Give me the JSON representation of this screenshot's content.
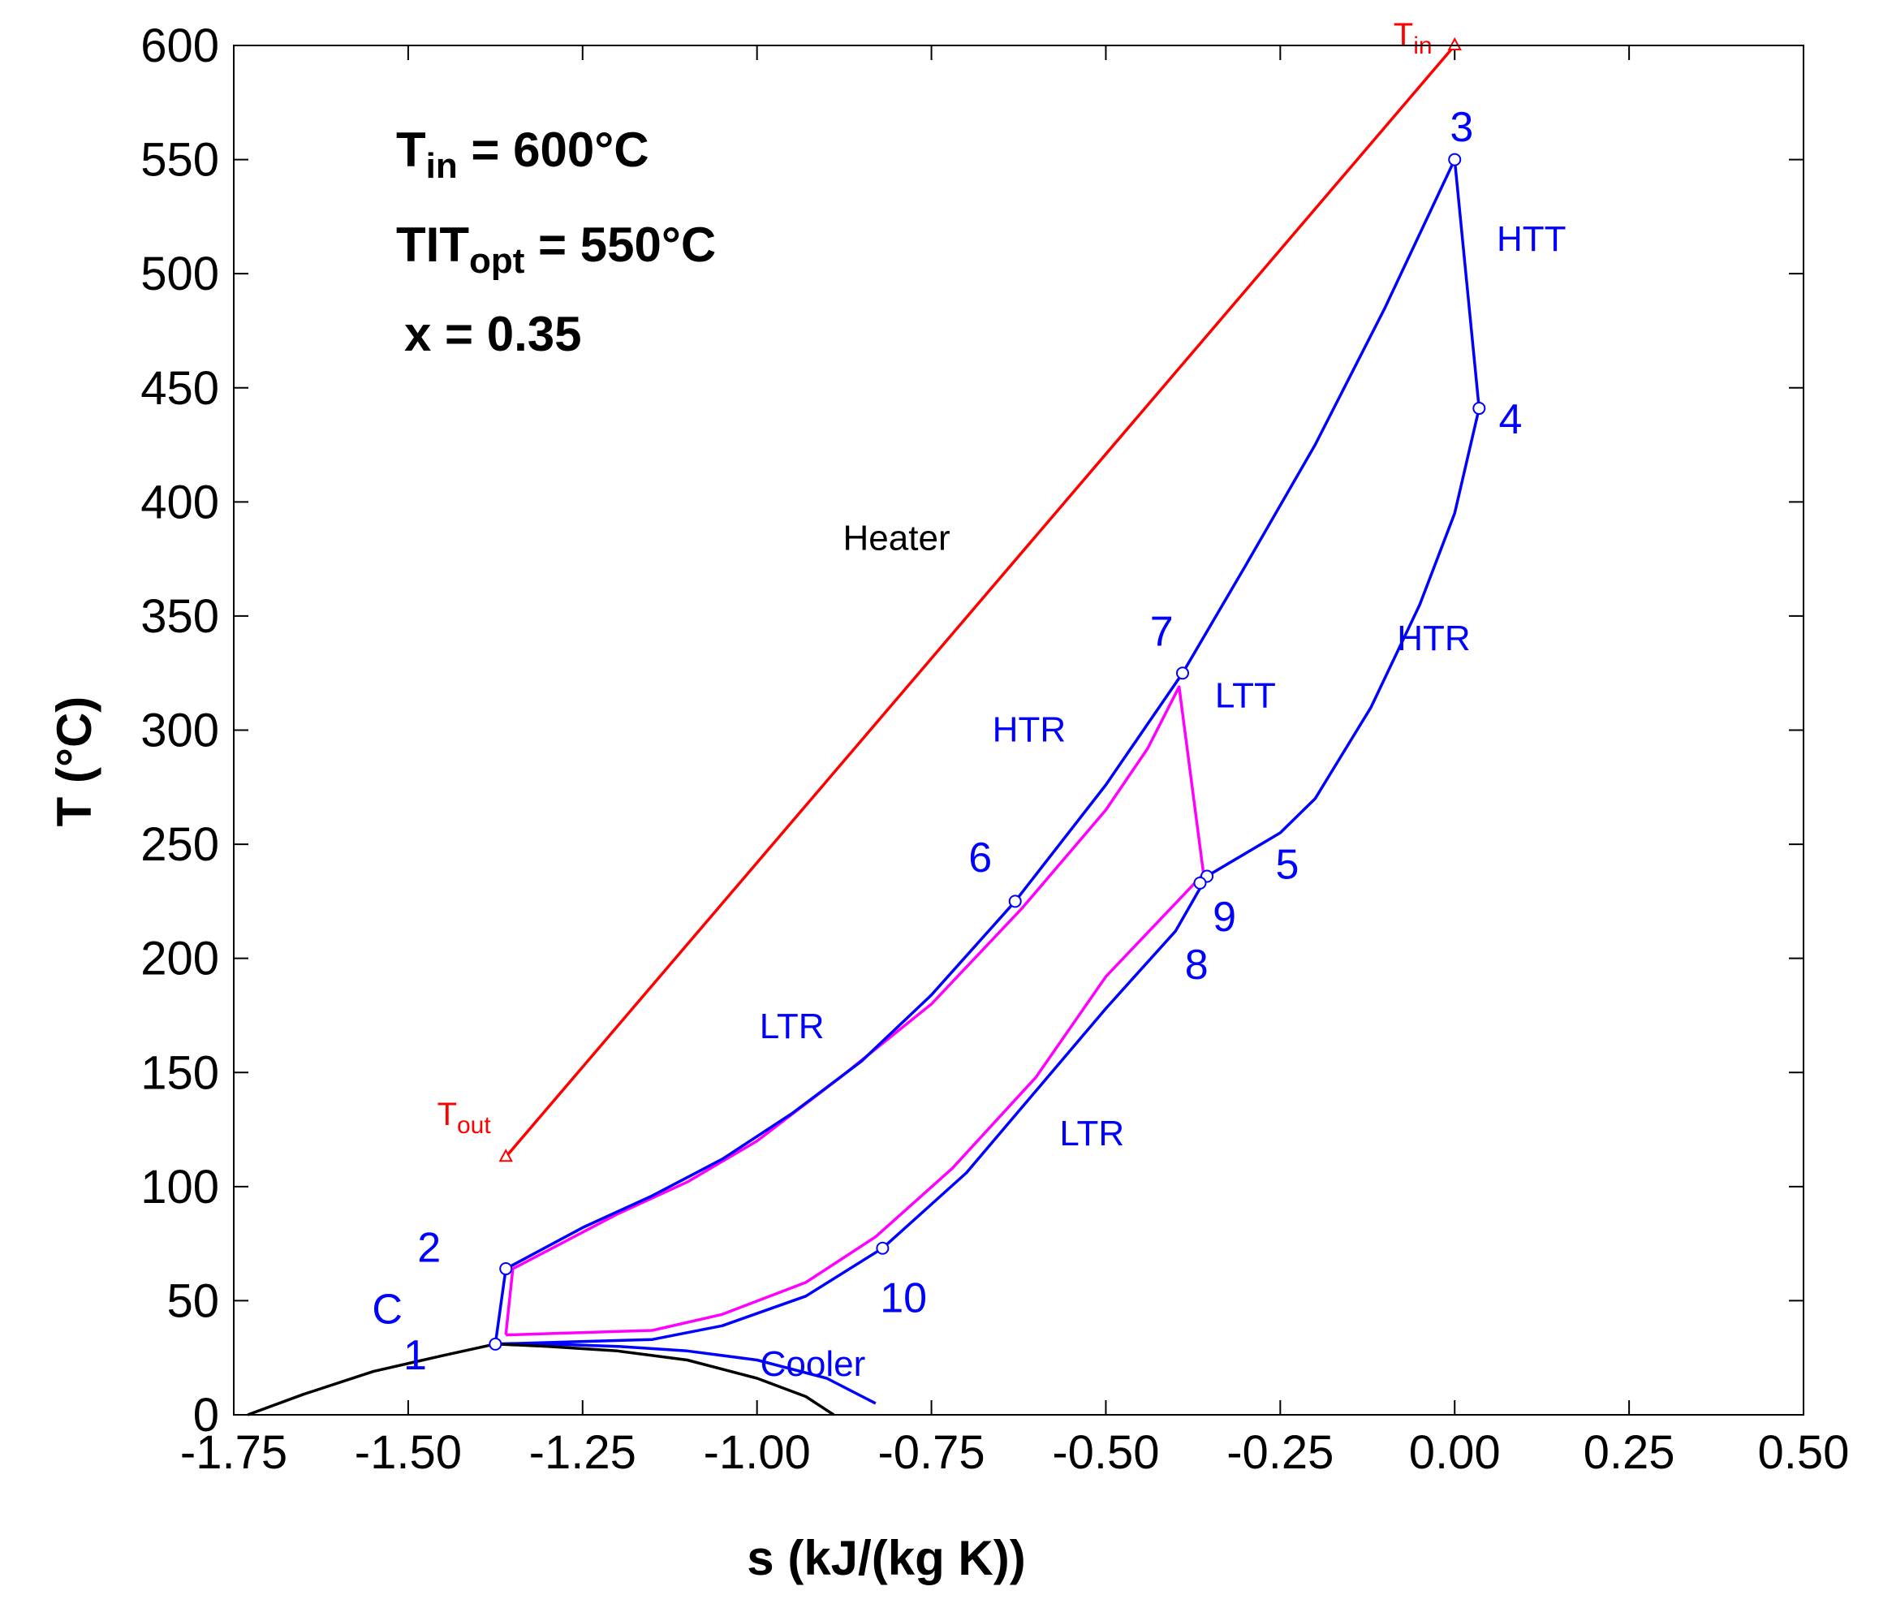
{
  "chart_data": {
    "type": "line",
    "xlabel": "s (kJ/(kg K))",
    "ylabel": "T (°C)",
    "xlim": [
      -1.75,
      0.5
    ],
    "ylim": [
      0,
      600
    ],
    "x_ticks": [
      "-1.75",
      "-1.50",
      "-1.25",
      "-1.00",
      "-0.75",
      "-0.50",
      "-0.25",
      "0.00",
      "0.25",
      "0.50"
    ],
    "y_ticks": [
      "0",
      "50",
      "100",
      "150",
      "200",
      "250",
      "300",
      "350",
      "400",
      "450",
      "500",
      "550",
      "600"
    ],
    "grid": false,
    "info_box": {
      "tin": {
        "main": "T",
        "sub": "in",
        "rest": " = 600°C"
      },
      "tit": {
        "main": "TIT",
        "sub": "opt",
        "rest": " = 550°C"
      },
      "x": "x = 0.35"
    },
    "series": [
      {
        "color": "#ff0000",
        "points": [
          [
            -1.36,
            113
          ],
          [
            0.0,
            600
          ]
        ],
        "markers": [
          [
            -1.36,
            113
          ],
          [
            0.0,
            600
          ]
        ]
      },
      {
        "color": "#0000ff",
        "points": [
          [
            -1.375,
            31
          ],
          [
            -1.3,
            31
          ],
          [
            -1.2,
            30
          ],
          [
            -1.1,
            28
          ],
          [
            -1.0,
            24
          ],
          [
            -0.9,
            16
          ],
          [
            -0.83,
            5
          ]
        ]
      },
      {
        "color": "#ff00ff",
        "points": [
          [
            -1.36,
            35
          ],
          [
            -1.15,
            37
          ],
          [
            -1.05,
            44
          ],
          [
            -0.93,
            58
          ],
          [
            -0.83,
            78
          ],
          [
            -0.72,
            108
          ],
          [
            -0.6,
            148
          ],
          [
            -0.5,
            192
          ],
          [
            -0.36,
            237
          ],
          [
            -0.395,
            319
          ],
          [
            -0.44,
            292
          ],
          [
            -0.5,
            265
          ],
          [
            -0.62,
            222
          ],
          [
            -0.75,
            180
          ],
          [
            -0.88,
            148
          ],
          [
            -1.0,
            120
          ],
          [
            -1.1,
            102
          ],
          [
            -1.2,
            88
          ],
          [
            -1.35,
            64
          ],
          [
            -1.36,
            35
          ]
        ]
      },
      {
        "color": "#0000ff",
        "points": [
          [
            -1.375,
            31
          ],
          [
            -1.36,
            64
          ],
          [
            -1.25,
            82
          ],
          [
            -1.15,
            96
          ],
          [
            -1.05,
            112
          ],
          [
            -0.95,
            132
          ],
          [
            -0.85,
            155
          ],
          [
            -0.75,
            184
          ],
          [
            -0.63,
            225
          ],
          [
            -0.5,
            276
          ],
          [
            -0.39,
            325
          ],
          [
            -0.3,
            372
          ],
          [
            -0.2,
            425
          ],
          [
            -0.1,
            485
          ],
          [
            0.0,
            550
          ],
          [
            0.035,
            441
          ],
          [
            0.0,
            395
          ],
          [
            -0.05,
            355
          ],
          [
            -0.12,
            310
          ],
          [
            -0.2,
            270
          ],
          [
            -0.25,
            255
          ],
          [
            -0.355,
            236
          ],
          [
            -0.4,
            212
          ],
          [
            -0.5,
            178
          ],
          [
            -0.6,
            142
          ],
          [
            -0.7,
            106
          ],
          [
            -0.82,
            73
          ],
          [
            -0.93,
            52
          ],
          [
            -1.05,
            39
          ],
          [
            -1.15,
            33
          ],
          [
            -1.375,
            31
          ]
        ],
        "markers": [
          [
            -1.375,
            31
          ],
          [
            -1.36,
            64
          ],
          [
            0.0,
            550
          ],
          [
            0.035,
            441
          ],
          [
            -0.355,
            236
          ],
          [
            -0.365,
            233
          ],
          [
            -0.63,
            225
          ],
          [
            -0.39,
            325
          ],
          [
            -0.82,
            73
          ]
        ]
      },
      {
        "color": "#000000",
        "points": [
          [
            -1.73,
            0
          ],
          [
            -1.65,
            9
          ],
          [
            -1.55,
            19
          ],
          [
            -1.45,
            26
          ],
          [
            -1.375,
            31
          ],
          [
            -1.3,
            30
          ],
          [
            -1.2,
            28
          ],
          [
            -1.1,
            24
          ],
          [
            -1.0,
            16
          ],
          [
            -0.93,
            8
          ],
          [
            -0.89,
            0
          ]
        ]
      }
    ],
    "annotations": [
      {
        "text": "Heater",
        "x": -0.8,
        "y": 379,
        "color": "#000000"
      },
      {
        "text": "HTR",
        "x": -0.61,
        "y": 295,
        "color": "#0000ff"
      },
      {
        "text": "LTT",
        "x": -0.3,
        "y": 310,
        "color": "#0000ff"
      },
      {
        "text": "HTR",
        "x": -0.03,
        "y": 335,
        "color": "#0000ff"
      },
      {
        "text": "HTT",
        "x": 0.11,
        "y": 510,
        "color": "#0000ff"
      },
      {
        "text": "LTR",
        "x": -0.95,
        "y": 165,
        "color": "#0000ff"
      },
      {
        "text": "LTR",
        "x": -0.52,
        "y": 118,
        "color": "#0000ff"
      },
      {
        "text": "Cooler",
        "x": -0.92,
        "y": 17,
        "color": "#0000ff"
      },
      {
        "text": "C",
        "x": -1.53,
        "y": 40,
        "color": "#0000ff"
      },
      {
        "text": "1",
        "x": -1.49,
        "y": 20,
        "color": "#0000ff"
      },
      {
        "text": "2",
        "x": -1.47,
        "y": 67,
        "color": "#0000ff"
      },
      {
        "text": "3",
        "x": 0.01,
        "y": 558,
        "color": "#0000ff"
      },
      {
        "text": "4",
        "x": 0.08,
        "y": 430,
        "color": "#0000ff"
      },
      {
        "text": "5",
        "x": -0.24,
        "y": 235,
        "color": "#0000ff"
      },
      {
        "text": "6",
        "x": -0.68,
        "y": 238,
        "color": "#0000ff"
      },
      {
        "text": "7",
        "x": -0.42,
        "y": 337,
        "color": "#0000ff"
      },
      {
        "text": "8",
        "x": -0.37,
        "y": 191,
        "color": "#0000ff"
      },
      {
        "text": "9",
        "x": -0.33,
        "y": 212,
        "color": "#0000ff"
      },
      {
        "text": "10",
        "x": -0.79,
        "y": 45,
        "color": "#0000ff"
      }
    ],
    "end_labels": [
      {
        "main": "T",
        "sub": "in",
        "x": -0.06,
        "y": 600,
        "color": "#ff0000"
      },
      {
        "main": "T",
        "sub": "out",
        "x": -1.42,
        "y": 127,
        "color": "#ff0000"
      }
    ]
  }
}
